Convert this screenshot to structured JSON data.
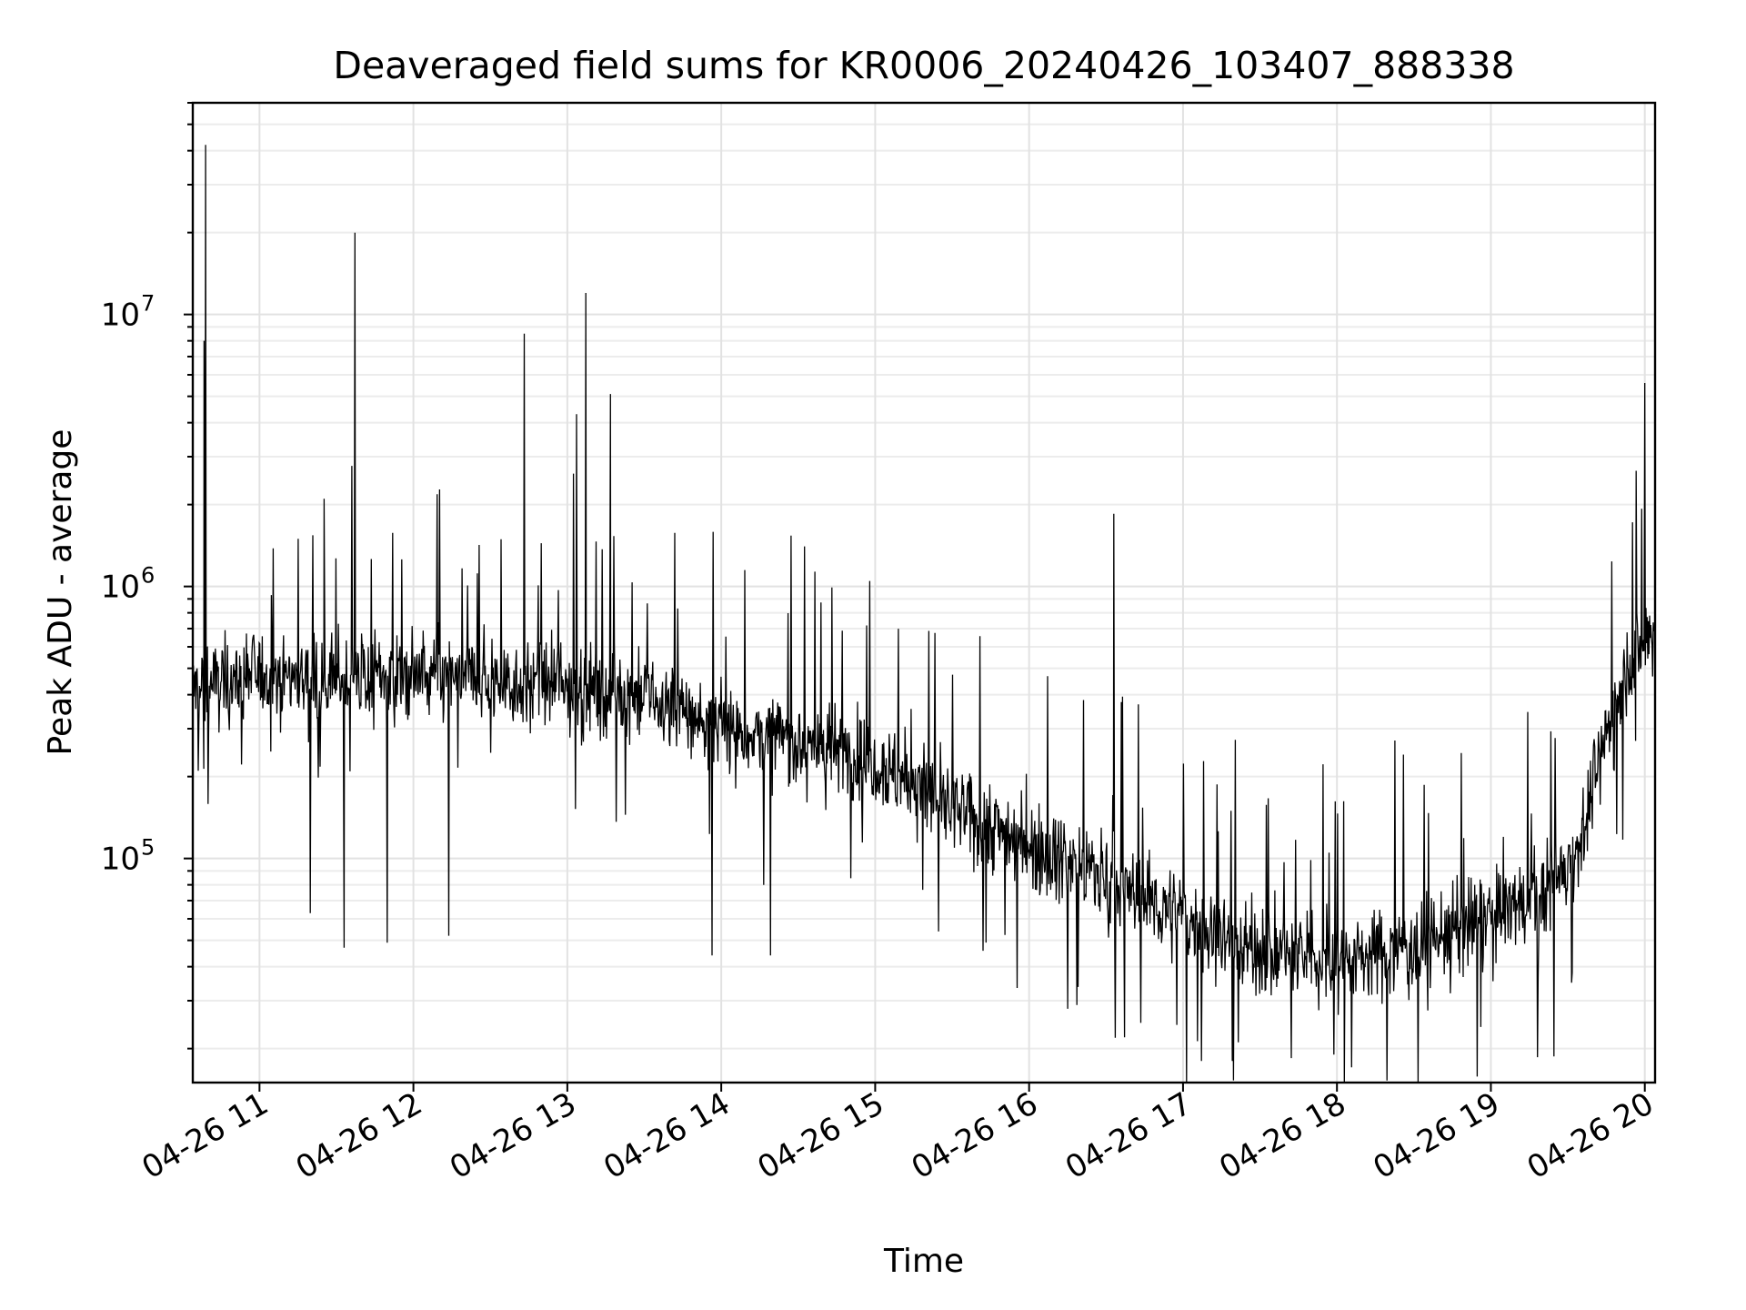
{
  "chart_data": {
    "type": "line",
    "title": "Deaveraged field sums for KR0006_20240426_103407_888338",
    "xlabel": "Time",
    "ylabel": "Peak ADU - average",
    "yscale": "log",
    "grid": true,
    "xlim": [
      "2024-04-26 10:34",
      "2024-04-26 20:04"
    ],
    "ylim": [
      15000,
      60000000
    ],
    "x_tick_labels": [
      "04-26 11",
      "04-26 12",
      "04-26 13",
      "04-26 14",
      "04-26 15",
      "04-26 16",
      "04-26 17",
      "04-26 18",
      "04-26 19",
      "04-26 20"
    ],
    "x_tick_hours": [
      11,
      12,
      13,
      14,
      15,
      16,
      17,
      18,
      19,
      20
    ],
    "y_tick_labels": [
      {
        "base": "10",
        "exp": "5",
        "value": 100000
      },
      {
        "base": "10",
        "exp": "6",
        "value": 1000000
      },
      {
        "base": "10",
        "exp": "7",
        "value": 10000000
      }
    ],
    "series": [
      {
        "color": "#000000",
        "baseline_hours": [
          10.57,
          11.0,
          11.5,
          12.0,
          12.5,
          13.0,
          13.5,
          14.0,
          14.5,
          15.0,
          15.5,
          16.0,
          16.5,
          17.0,
          17.5,
          18.0,
          18.5,
          19.0,
          19.4,
          19.6,
          19.75,
          19.9,
          20.07
        ],
        "baseline_values": [
          420000,
          480000,
          460000,
          470000,
          450000,
          430000,
          390000,
          300000,
          270000,
          230000,
          150000,
          115000,
          85000,
          60000,
          45000,
          42000,
          48000,
          60000,
          80000,
          120000,
          300000,
          500000,
          700000
        ],
        "spikes": [
          {
            "hour": 10.65,
            "value": 42000000
          },
          {
            "hour": 10.64,
            "value": 8000000
          },
          {
            "hour": 11.42,
            "value": 2100000
          },
          {
            "hour": 11.62,
            "value": 20000000
          },
          {
            "hour": 12.72,
            "value": 8500000
          },
          {
            "hour": 13.06,
            "value": 4300000
          },
          {
            "hour": 13.04,
            "value": 2600000
          },
          {
            "hour": 13.12,
            "value": 12000000
          },
          {
            "hour": 13.28,
            "value": 5100000
          },
          {
            "hour": 16.55,
            "value": 1850000
          },
          {
            "hour": 20.0,
            "value": 5600000
          }
        ],
        "dips": [
          {
            "hour": 11.33,
            "value": 63000
          },
          {
            "hour": 11.55,
            "value": 47000
          },
          {
            "hour": 11.83,
            "value": 49000
          },
          {
            "hour": 12.23,
            "value": 52000
          },
          {
            "hour": 13.94,
            "value": 44000
          },
          {
            "hour": 14.32,
            "value": 44000
          },
          {
            "hour": 16.62,
            "value": 22000
          },
          {
            "hour": 17.12,
            "value": 18000
          },
          {
            "hour": 17.32,
            "value": 18000
          },
          {
            "hour": 17.98,
            "value": 19000
          }
        ]
      }
    ]
  }
}
